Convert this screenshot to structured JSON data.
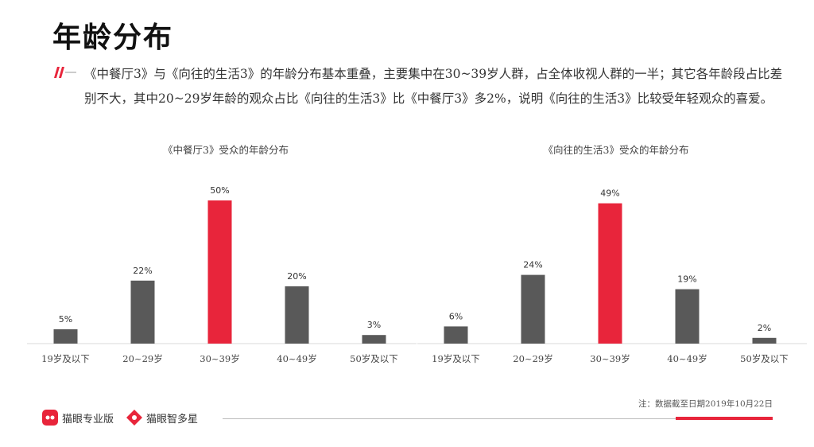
{
  "header": {
    "title": "年龄分布",
    "summary": "《中餐厅3》与《向往的生活3》的年龄分布基本重叠，主要集中在30~39岁人群，占全体收视人群的一半；其它各年龄段占比差别不大，其中20~29岁年龄的观众占比《向往的生活3》比《中餐厅3》多2%，说明《向往的生活3》比较受年轻观众的喜爱。"
  },
  "colors": {
    "bar_default": "#595959",
    "bar_highlight": "#e8253b",
    "accent": "#e8253b",
    "axis": "#d9d9d9"
  },
  "chart_data": [
    {
      "type": "bar",
      "title": "《中餐厅3》受众的年龄分布",
      "categories": [
        "19岁及以下",
        "20~29岁",
        "30~39岁",
        "40~49岁",
        "50岁及以下"
      ],
      "values": [
        5,
        22,
        50,
        20,
        3
      ],
      "value_labels": [
        "5%",
        "22%",
        "50%",
        "20%",
        "3%"
      ],
      "highlight_index": 2,
      "ylim": [
        0,
        50
      ],
      "grid": false,
      "legend": "none"
    },
    {
      "type": "bar",
      "title": "《向往的生活3》受众的年龄分布",
      "categories": [
        "19岁及以下",
        "20~29岁",
        "30~39岁",
        "40~49岁",
        "50岁及以下"
      ],
      "values": [
        6,
        24,
        49,
        19,
        2
      ],
      "value_labels": [
        "6%",
        "24%",
        "49%",
        "19%",
        "2%"
      ],
      "highlight_index": 2,
      "ylim": [
        0,
        50
      ],
      "grid": false,
      "legend": "none"
    }
  ],
  "footer": {
    "logo_a": "猫眼专业版",
    "logo_b": "猫眼智多星",
    "note": "注：数据截至日期2019年10月22日"
  }
}
